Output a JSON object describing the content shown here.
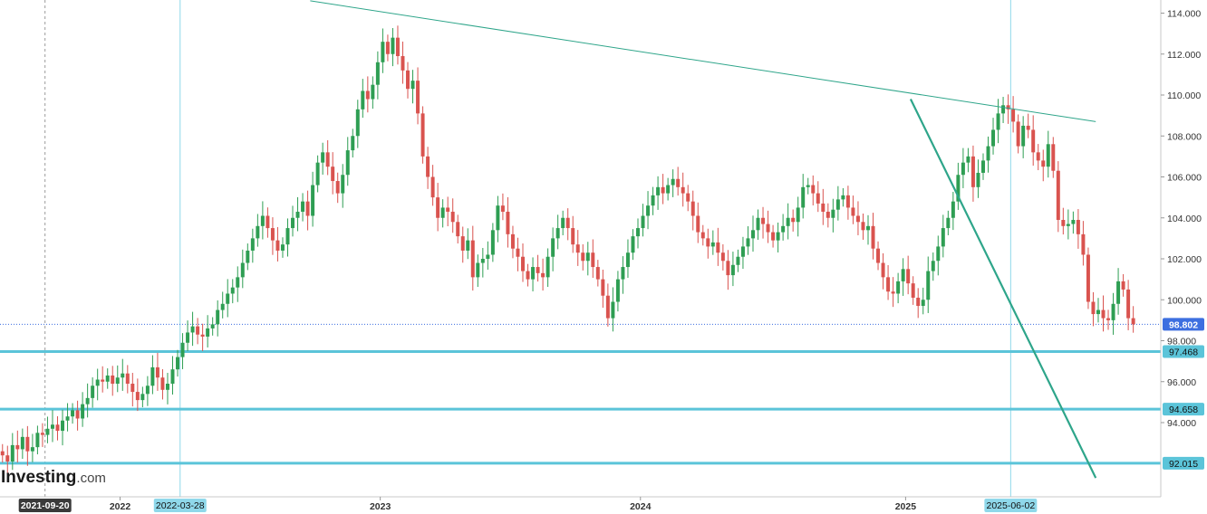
{
  "chart_data": {
    "type": "candlestick",
    "title": "",
    "xlabel": "",
    "ylabel": "",
    "ylim": [
      90.5,
      115.0
    ],
    "x_axis": {
      "ticks": [
        {
          "label": "2022",
          "date": "2022-01-03"
        },
        {
          "label": "2023",
          "date": "2023-01-02"
        },
        {
          "label": "2024",
          "date": "2024-01-01"
        },
        {
          "label": "2025",
          "date": "2025-01-06"
        }
      ],
      "date_range": [
        "2021-07-19",
        "2025-12-29"
      ]
    },
    "y_ticks": [
      "94.000",
      "96.000",
      "98.000",
      "100.000",
      "102.000",
      "104.000",
      "106.000",
      "108.000",
      "110.000",
      "112.000",
      "114.000"
    ],
    "grid": false,
    "price_label": {
      "text": "98.802",
      "value": 98.802,
      "color": "#3d6fe0"
    },
    "horizontal_levels": [
      {
        "value": 97.468,
        "label": "97.468",
        "color": "#5bc4d9"
      },
      {
        "value": 94.658,
        "label": "94.658",
        "color": "#5bc4d9"
      },
      {
        "value": 92.015,
        "label": "92.015",
        "color": "#5bc4d9"
      }
    ],
    "vertical_markers": [
      {
        "date": "2021-09-20",
        "label": "2021-09-20",
        "style": "dashed"
      },
      {
        "date": "2022-03-28",
        "label": "2022-03-28",
        "style": "solid"
      },
      {
        "date": "2025-06-02",
        "label": "2025-06-02",
        "style": "solid"
      }
    ],
    "trendlines": [
      {
        "from": {
          "date": "2022-09-26",
          "value": 114.6
        },
        "to": {
          "date": "2025-09-29",
          "value": 108.7
        },
        "color": "#2ea58a",
        "width": 1
      },
      {
        "from": {
          "date": "2025-01-13",
          "value": 109.8
        },
        "to": {
          "date": "2025-09-29",
          "value": 91.3
        },
        "color": "#2ea58a",
        "width": 2.2
      }
    ],
    "colors": {
      "up": "#2e9e53",
      "down": "#d9534f",
      "levels": "#5bc4d9",
      "trend": "#2ea58a"
    },
    "series": [
      {
        "values": [
          92.4,
          92.1,
          92.9,
          92.7,
          93.3,
          92.6,
          92.8,
          93.5,
          93.4,
          93.7,
          93.9,
          93.6,
          94.1,
          94.3,
          94.6,
          94.2,
          94.9,
          95.2,
          95.8,
          96.1,
          96.0,
          96.3,
          95.9,
          96.2,
          96.4,
          95.9,
          95.5,
          95.1,
          95.4,
          95.8,
          96.7,
          96.2,
          95.6,
          95.9,
          96.6,
          97.2,
          97.9,
          98.4,
          98.7,
          98.3,
          98.2,
          98.6,
          98.8,
          99.5,
          99.8,
          100.3,
          100.6,
          101.1,
          101.8,
          102.4,
          103.0,
          103.6,
          104.1,
          103.5,
          102.9,
          102.4,
          102.7,
          103.5,
          104.0,
          104.3,
          104.8,
          104.1,
          105.6,
          106.7,
          107.2,
          106.5,
          105.8,
          105.2,
          106.1,
          107.3,
          108.0,
          109.3,
          110.2,
          109.8,
          110.5,
          111.6,
          112.6,
          112.0,
          112.8,
          111.9,
          111.2,
          110.3,
          110.7,
          109.1,
          107.0,
          106.0,
          105.0,
          104.0,
          104.5,
          104.3,
          103.8,
          103.1,
          102.4,
          102.9,
          101.1,
          101.8,
          102.0,
          102.2,
          103.4,
          104.6,
          104.3,
          103.2,
          102.5,
          102.1,
          101.4,
          101.0,
          101.6,
          101.3,
          101.1,
          102.1,
          103.0,
          103.5,
          104.0,
          103.5,
          102.7,
          102.3,
          101.9,
          102.3,
          101.6,
          101.0,
          100.2,
          99.1,
          99.9,
          101.0,
          101.6,
          102.3,
          103.1,
          103.5,
          104.1,
          104.6,
          105.1,
          105.5,
          105.2,
          105.6,
          105.9,
          105.5,
          105.2,
          104.8,
          104.1,
          103.3,
          103.0,
          102.6,
          102.8,
          102.3,
          101.9,
          101.2,
          101.7,
          102.1,
          102.6,
          103.0,
          103.4,
          104.0,
          103.7,
          103.3,
          102.9,
          103.3,
          103.6,
          104.0,
          103.8,
          104.5,
          105.5,
          105.6,
          105.2,
          104.7,
          104.3,
          104.0,
          104.4,
          104.9,
          105.1,
          104.5,
          104.1,
          103.8,
          103.4,
          103.6,
          102.5,
          101.8,
          101.1,
          100.4,
          100.3,
          100.9,
          101.5,
          100.8,
          100.1,
          99.7,
          100.0,
          101.4,
          101.9,
          102.6,
          103.5,
          104.0,
          104.8,
          106.1,
          106.7,
          107.0,
          105.5,
          106.2,
          106.8,
          107.5,
          108.3,
          109.1,
          109.5,
          109.3,
          108.7,
          107.5,
          108.5,
          108.3,
          107.2,
          106.8,
          106.5,
          107.6,
          106.3,
          103.9,
          103.6,
          103.7,
          103.9,
          103.2,
          102.2,
          99.9,
          99.3,
          99.5,
          99.1,
          99.0,
          99.8,
          100.9,
          100.5,
          99.1,
          98.8
        ]
      }
    ]
  },
  "watermark": {
    "brand": "Investing",
    "suffix": ".com"
  }
}
